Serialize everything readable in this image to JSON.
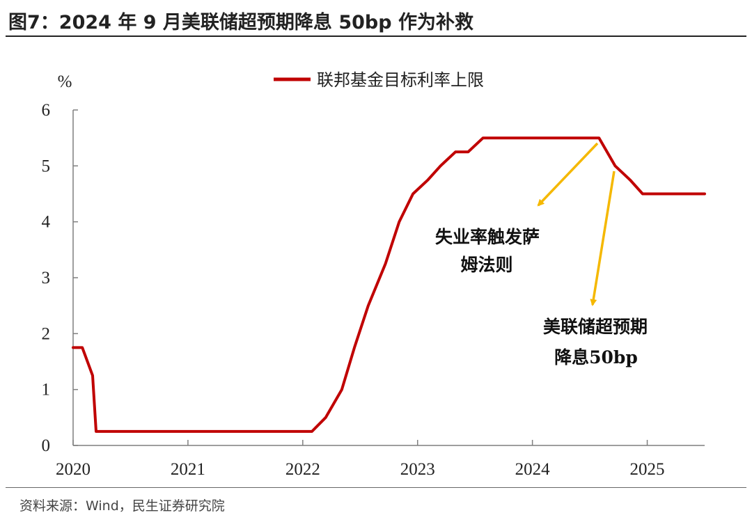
{
  "title": "图7：2024 年 9 月美联储超预期降息 50bp 作为补救",
  "source": "资料来源：Wind，民生证券研究院",
  "colors": {
    "line": "#C00000",
    "arrow": "#F5B800",
    "axis": "#7f7f7f"
  },
  "chart_data": {
    "type": "line",
    "ylabel": "%",
    "ylim": [
      0,
      6
    ],
    "yticks": [
      "0",
      "1",
      "2",
      "3",
      "4",
      "5",
      "6"
    ],
    "xlim": [
      2020.0,
      2025.5
    ],
    "xticks": [
      "2020",
      "2021",
      "2022",
      "2023",
      "2024",
      "2025"
    ],
    "grid": false,
    "legend_position": "top-center",
    "series": [
      {
        "name": "联邦基金目标利率上限",
        "x": [
          2020.0,
          2020.08,
          2020.17,
          2020.2,
          2022.08,
          2022.2,
          2022.34,
          2022.45,
          2022.57,
          2022.72,
          2022.84,
          2022.96,
          2023.09,
          2023.2,
          2023.33,
          2023.44,
          2023.57,
          2024.58,
          2024.72,
          2024.85,
          2024.96,
          2025.5
        ],
        "values": [
          1.75,
          1.75,
          1.25,
          0.25,
          0.25,
          0.5,
          1.0,
          1.75,
          2.5,
          3.25,
          4.0,
          4.5,
          4.75,
          5.0,
          5.25,
          5.25,
          5.5,
          5.5,
          5.0,
          4.75,
          4.5,
          4.5
        ]
      }
    ],
    "annotations": [
      {
        "lines": [
          "失业率触发萨",
          "姆法则"
        ]
      },
      {
        "lines": [
          "美联储超预期",
          "降息50bp"
        ]
      }
    ]
  }
}
